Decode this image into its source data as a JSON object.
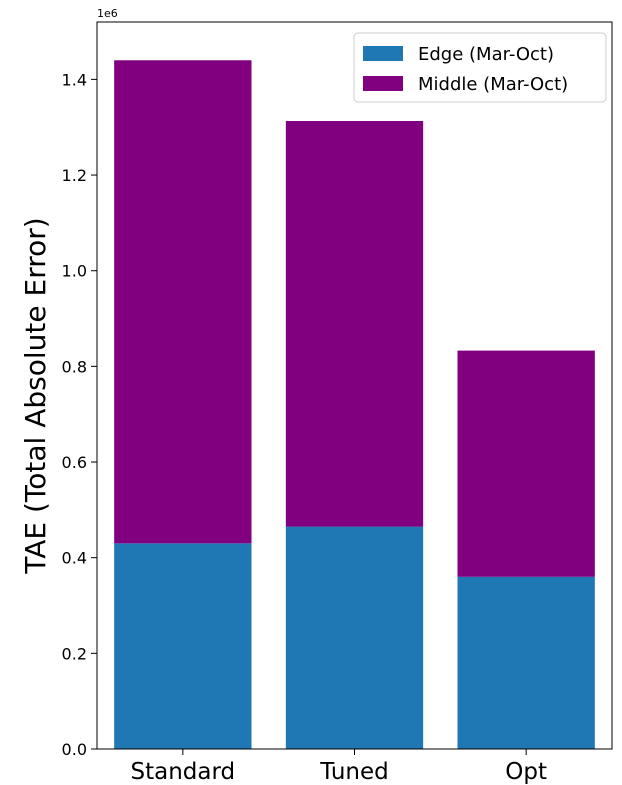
{
  "chart_data": {
    "type": "bar",
    "stacked": true,
    "categories": [
      "Standard",
      "Tuned",
      "Opt"
    ],
    "series": [
      {
        "name": "Edge (Mar-Oct)",
        "values": [
          430000,
          465000,
          360000
        ],
        "color": "#1f77b4"
      },
      {
        "name": "Middle (Mar-Oct)",
        "values": [
          1010000,
          848000,
          473000
        ],
        "color": "#800080"
      }
    ],
    "ylabel": "TAE (Total Absolute Error)",
    "y_offset_label": "1e6",
    "ylim": [
      0,
      1520000
    ],
    "yticks": [
      0,
      200000,
      400000,
      600000,
      800000,
      1000000,
      1200000,
      1400000
    ],
    "ytick_labels": [
      "0.0",
      "0.2",
      "0.4",
      "0.6",
      "0.8",
      "1.0",
      "1.2",
      "1.4"
    ],
    "legend_position": "top-right",
    "grid": false
  }
}
